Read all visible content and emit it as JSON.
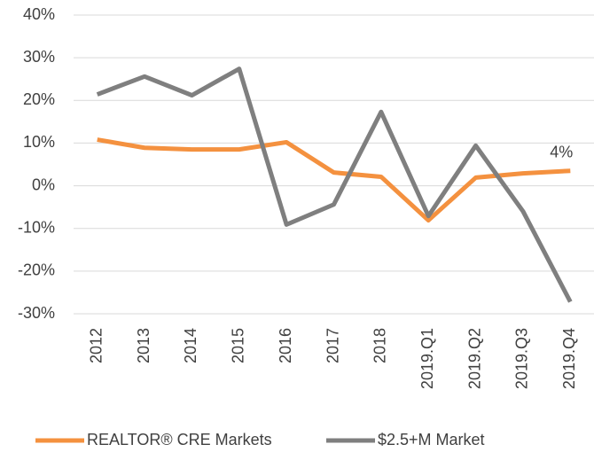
{
  "chart_data": {
    "type": "line",
    "categories": [
      "2012",
      "2013",
      "2014",
      "2015",
      "2016",
      "2017",
      "2018",
      "2019.Q1",
      "2019.Q2",
      "2019.Q3",
      "2019.Q4"
    ],
    "series": [
      {
        "name": "REALTOR® CRE Markets",
        "color": "#f4913f",
        "values": [
          10.8,
          8.9,
          8.5,
          8.5,
          10.2,
          3.1,
          2.1,
          -8.1,
          1.9,
          2.9,
          3.5
        ],
        "value_labels": [
          null,
          null,
          null,
          null,
          null,
          null,
          null,
          null,
          null,
          null,
          "4%"
        ]
      },
      {
        "name": "$2.5+M Market",
        "color": "#7f7f7f",
        "values": [
          21.4,
          25.6,
          21.2,
          27.4,
          -9.1,
          -4.4,
          17.3,
          -7.1,
          9.4,
          -6.0,
          -27.2
        ]
      }
    ],
    "ylim": [
      -30,
      40
    ],
    "yticks": [
      {
        "value": -30,
        "label": "-30%"
      },
      {
        "value": -20,
        "label": "-20%"
      },
      {
        "value": -10,
        "label": "-10%"
      },
      {
        "value": 0,
        "label": "0%"
      },
      {
        "value": 10,
        "label": "10%"
      },
      {
        "value": 20,
        "label": "20%"
      },
      {
        "value": 30,
        "label": "30%"
      },
      {
        "value": 40,
        "label": "40%"
      }
    ],
    "grid": true,
    "legend": "bottom"
  }
}
